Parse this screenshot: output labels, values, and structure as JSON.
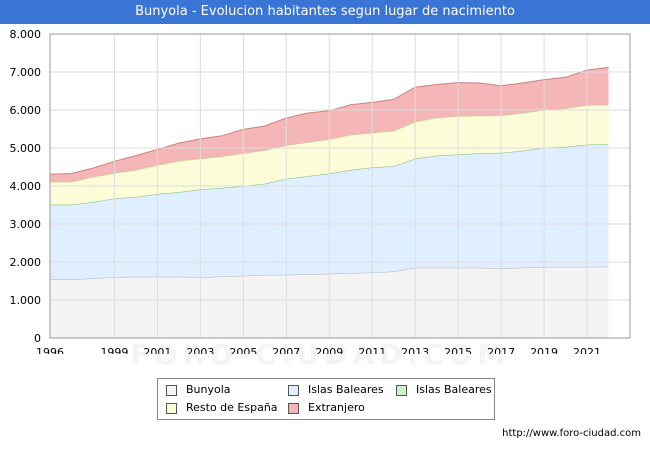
{
  "header": {
    "title": "Bunyola - Evolucion habitantes segun lugar de nacimiento"
  },
  "footer": {
    "url": "http://www.foro-ciudad.com"
  },
  "watermark": {
    "text": "FORO-CIUDAD.COM"
  },
  "chart_data": {
    "type": "area",
    "stacked": true,
    "title": "Bunyola - Evolucion habitantes segun lugar de nacimiento",
    "x": [
      1996,
      1997,
      1998,
      1999,
      2000,
      2001,
      2002,
      2003,
      2004,
      2005,
      2006,
      2007,
      2008,
      2009,
      2010,
      2011,
      2012,
      2013,
      2014,
      2015,
      2016,
      2017,
      2018,
      2019,
      2020,
      2021,
      2022
    ],
    "xticks": [
      1996,
      1999,
      2001,
      2003,
      2005,
      2007,
      2009,
      2011,
      2013,
      2015,
      2017,
      2019,
      2021
    ],
    "ylim": [
      0,
      8000
    ],
    "yticks": [
      {
        "value": 0,
        "label": "0"
      },
      {
        "value": 1000,
        "label": "1.000"
      },
      {
        "value": 2000,
        "label": "2.000"
      },
      {
        "value": 3000,
        "label": "3.000"
      },
      {
        "value": 4000,
        "label": "4.000"
      },
      {
        "value": 5000,
        "label": "5.000"
      },
      {
        "value": 6000,
        "label": "6.000"
      },
      {
        "value": 7000,
        "label": "7.000"
      },
      {
        "value": 8000,
        "label": "8.000"
      }
    ],
    "grid": true,
    "legend_position": "bottom",
    "series": [
      {
        "name": "Bunyola",
        "color": "#f4f4f4",
        "line": "#b0b0b0",
        "values": [
          1540,
          1540,
          1570,
          1600,
          1610,
          1610,
          1610,
          1590,
          1620,
          1640,
          1660,
          1660,
          1680,
          1690,
          1710,
          1720,
          1750,
          1850,
          1850,
          1850,
          1850,
          1830,
          1850,
          1870,
          1870,
          1870,
          1880
        ]
      },
      {
        "name": "Islas Baleares",
        "color": "#dfefff",
        "line": "#a6c6e6",
        "values": [
          1970,
          1970,
          2010,
          2070,
          2100,
          2180,
          2230,
          2320,
          2330,
          2360,
          2400,
          2530,
          2580,
          2640,
          2710,
          2770,
          2770,
          2870,
          2950,
          2980,
          3010,
          3040,
          3080,
          3140,
          3160,
          3220,
          3220
        ]
      },
      {
        "name": "Islas Baleares",
        "color": "#ccf2c6",
        "line": "#7fbf7f",
        "values": [
          0,
          0,
          0,
          0,
          0,
          0,
          0,
          0,
          0,
          0,
          0,
          0,
          0,
          0,
          0,
          0,
          0,
          0,
          0,
          0,
          0,
          0,
          0,
          0,
          0,
          0,
          0
        ]
      },
      {
        "name": "Resto de España",
        "color": "#fcfcd9",
        "line": "#c8c88a",
        "values": [
          600,
          600,
          660,
          670,
          710,
          760,
          820,
          810,
          830,
          860,
          880,
          880,
          890,
          900,
          930,
          910,
          930,
          970,
          1000,
          1010,
          990,
          990,
          990,
          990,
          1010,
          1040,
          1040
        ]
      },
      {
        "name": "Extranjero",
        "color": "#f4b6b6",
        "line": "#d08080",
        "values": [
          200,
          220,
          230,
          310,
          380,
          410,
          470,
          520,
          540,
          630,
          640,
          720,
          770,
          750,
          790,
          800,
          830,
          910,
          870,
          880,
          860,
          780,
          790,
          800,
          820,
          920,
          980
        ]
      }
    ]
  },
  "legend": {
    "items": [
      {
        "label": "Bunyola",
        "color": "#f4f4f4"
      },
      {
        "label": "Islas Baleares",
        "color": "#dfefff"
      },
      {
        "label": "Islas Baleares",
        "color": "#ccf2c6"
      },
      {
        "label": "Resto de España",
        "color": "#fcfcd9"
      },
      {
        "label": "Extranjero",
        "color": "#f4b6b6"
      }
    ]
  }
}
